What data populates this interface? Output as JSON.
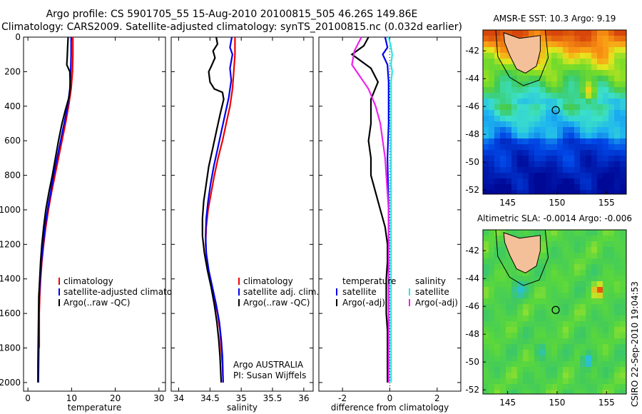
{
  "header": {
    "line1": "Argo profile: CS 5901705_55 15-Aug-2010 20100815_505 46.26S 149.86E",
    "line2": "Climatology: CARS2009. Satellite-adjusted climatology: synTS_20100815.nc (0.032d earlier)"
  },
  "side_text": "CSIRO 22-Sep-2010 19:04:53",
  "colors": {
    "argo": "#000000",
    "climatology": "#ee0000",
    "satellite": "#0000ee",
    "sal_satellite": "#22e8e8",
    "sal_argo": "#ee22ee",
    "land": "#f4c09a"
  },
  "chart_data": [
    {
      "type": "line",
      "xlabel": "temperature",
      "ylabel": "",
      "xlim": [
        -1,
        31.5
      ],
      "ylim": [
        2050,
        0
      ],
      "y_reversed": true,
      "xticks": [
        0,
        10,
        20,
        30
      ],
      "yticks": [
        0,
        200,
        400,
        600,
        800,
        1000,
        1200,
        1400,
        1600,
        1800,
        2000
      ],
      "legend": [
        "climatology",
        "satellite-adjusted climatology",
        "Argo(..raw -QC)"
      ],
      "series": [
        {
          "name": "climatology",
          "color": "#ee0000",
          "points": [
            [
              10.3,
              0
            ],
            [
              10.3,
              100
            ],
            [
              10.2,
              200
            ],
            [
              9.9,
              300
            ],
            [
              9.3,
              400
            ],
            [
              8.6,
              500
            ],
            [
              7.8,
              600
            ],
            [
              7.0,
              700
            ],
            [
              6.2,
              800
            ],
            [
              5.4,
              900
            ],
            [
              4.7,
              1000
            ],
            [
              4.1,
              1100
            ],
            [
              3.6,
              1200
            ],
            [
              3.2,
              1300
            ],
            [
              2.9,
              1400
            ],
            [
              2.7,
              1500
            ],
            [
              2.6,
              1600
            ],
            [
              2.6,
              1700
            ],
            [
              2.6,
              1800
            ]
          ]
        },
        {
          "name": "satellite-adjusted climatology",
          "color": "#0000ee",
          "points": [
            [
              9.9,
              0
            ],
            [
              9.9,
              100
            ],
            [
              9.8,
              200
            ],
            [
              9.6,
              300
            ],
            [
              9.1,
              400
            ],
            [
              8.3,
              500
            ],
            [
              7.5,
              600
            ],
            [
              6.7,
              700
            ],
            [
              5.9,
              800
            ],
            [
              5.2,
              900
            ],
            [
              4.5,
              1000
            ],
            [
              3.9,
              1100
            ],
            [
              3.5,
              1200
            ],
            [
              3.1,
              1300
            ],
            [
              2.8,
              1400
            ],
            [
              2.6,
              1500
            ],
            [
              2.5,
              1600
            ],
            [
              2.5,
              1800
            ],
            [
              2.4,
              2000
            ]
          ]
        },
        {
          "name": "Argo(..raw -QC)",
          "color": "#000000",
          "points": [
            [
              9.2,
              0
            ],
            [
              9.1,
              60
            ],
            [
              9.0,
              120
            ],
            [
              8.9,
              160
            ],
            [
              9.6,
              200
            ],
            [
              9.7,
              280
            ],
            [
              9.5,
              340
            ],
            [
              8.6,
              420
            ],
            [
              7.8,
              500
            ],
            [
              7.0,
              600
            ],
            [
              6.3,
              700
            ],
            [
              5.6,
              800
            ],
            [
              4.8,
              900
            ],
            [
              4.1,
              1000
            ],
            [
              3.6,
              1100
            ],
            [
              3.2,
              1200
            ],
            [
              2.9,
              1300
            ],
            [
              2.7,
              1400
            ],
            [
              2.5,
              1500
            ],
            [
              2.4,
              1700
            ],
            [
              2.3,
              1900
            ],
            [
              2.3,
              2000
            ]
          ]
        }
      ]
    },
    {
      "type": "line",
      "xlabel": "salinity",
      "ylabel": "",
      "xlim": [
        33.88,
        36.15
      ],
      "ylim": [
        2050,
        0
      ],
      "y_reversed": true,
      "xticks": [
        34,
        34.5,
        35,
        35.5,
        36
      ],
      "xtick_labels": [
        "34",
        "34.5",
        "35",
        "35.5",
        "36"
      ],
      "legend": [
        "climatology",
        "satellite adj. clim.",
        "Argo(..raw -QC)"
      ],
      "annotation": [
        "Argo AUSTRALIA",
        "PI: Susan Wijffels"
      ],
      "series": [
        {
          "name": "climatology",
          "color": "#ee0000",
          "points": [
            [
              34.9,
              0
            ],
            [
              34.9,
              100
            ],
            [
              34.88,
              200
            ],
            [
              34.86,
              300
            ],
            [
              34.82,
              400
            ],
            [
              34.76,
              500
            ],
            [
              34.7,
              600
            ],
            [
              34.63,
              700
            ],
            [
              34.57,
              800
            ],
            [
              34.52,
              900
            ],
            [
              34.47,
              1000
            ],
            [
              34.44,
              1100
            ],
            [
              34.43,
              1200
            ],
            [
              34.45,
              1300
            ],
            [
              34.5,
              1400
            ],
            [
              34.56,
              1500
            ],
            [
              34.62,
              1600
            ],
            [
              34.66,
              1700
            ],
            [
              34.68,
              1800
            ],
            [
              34.7,
              1900
            ],
            [
              34.71,
              2000
            ]
          ]
        },
        {
          "name": "satellite adj. clim.",
          "color": "#0000ee",
          "points": [
            [
              34.85,
              0
            ],
            [
              34.82,
              60
            ],
            [
              34.86,
              100
            ],
            [
              34.82,
              180
            ],
            [
              34.84,
              250
            ],
            [
              34.8,
              350
            ],
            [
              34.74,
              450
            ],
            [
              34.68,
              550
            ],
            [
              34.62,
              650
            ],
            [
              34.56,
              750
            ],
            [
              34.51,
              850
            ],
            [
              34.47,
              950
            ],
            [
              34.44,
              1050
            ],
            [
              34.43,
              1150
            ],
            [
              34.44,
              1250
            ],
            [
              34.48,
              1350
            ],
            [
              34.54,
              1450
            ],
            [
              34.6,
              1550
            ],
            [
              34.65,
              1650
            ],
            [
              34.68,
              1750
            ],
            [
              34.7,
              1850
            ],
            [
              34.71,
              2000
            ]
          ]
        },
        {
          "name": "Argo(..raw -QC)",
          "color": "#000000",
          "points": [
            [
              34.6,
              0
            ],
            [
              34.62,
              40
            ],
            [
              34.55,
              80
            ],
            [
              34.58,
              120
            ],
            [
              34.52,
              170
            ],
            [
              34.48,
              200
            ],
            [
              34.5,
              260
            ],
            [
              34.57,
              300
            ],
            [
              34.7,
              320
            ],
            [
              34.72,
              360
            ],
            [
              34.66,
              450
            ],
            [
              34.6,
              550
            ],
            [
              34.54,
              650
            ],
            [
              34.48,
              750
            ],
            [
              34.44,
              850
            ],
            [
              34.4,
              950
            ],
            [
              34.38,
              1050
            ],
            [
              34.38,
              1150
            ],
            [
              34.41,
              1250
            ],
            [
              34.46,
              1350
            ],
            [
              34.52,
              1450
            ],
            [
              34.57,
              1550
            ],
            [
              34.61,
              1650
            ],
            [
              34.64,
              1750
            ],
            [
              34.66,
              1850
            ],
            [
              34.68,
              2000
            ]
          ]
        }
      ]
    },
    {
      "type": "line",
      "xlabel": "difference from climatology",
      "ylabel": "",
      "xlim": [
        -3,
        3
      ],
      "ylim": [
        2050,
        0
      ],
      "y_reversed": true,
      "xticks": [
        -2,
        0,
        2
      ],
      "xtick_labels": [
        "-2",
        "0",
        "2"
      ],
      "legend_groups": [
        {
          "title": "temperature",
          "items": [
            "satellite",
            "Argo(-adj)"
          ]
        },
        {
          "title": "salinity",
          "items": [
            "satellite",
            "Argo(-adj)"
          ]
        }
      ],
      "series": [
        {
          "name": "temperature satellite",
          "color": "#0000ee",
          "points": [
            [
              -0.2,
              0
            ],
            [
              -0.1,
              60
            ],
            [
              -0.3,
              100
            ],
            [
              -0.1,
              160
            ],
            [
              -0.05,
              260
            ],
            [
              -0.05,
              500
            ],
            [
              -0.1,
              700
            ],
            [
              -0.05,
              1000
            ],
            [
              -0.05,
              1200
            ],
            [
              -0.05,
              1500
            ],
            [
              -0.05,
              2000
            ]
          ]
        },
        {
          "name": "temperature Argo(-adj)",
          "color": "#000000",
          "points": [
            [
              -0.9,
              0
            ],
            [
              -1.1,
              50
            ],
            [
              -1.6,
              100
            ],
            [
              -0.8,
              180
            ],
            [
              -0.5,
              260
            ],
            [
              -0.8,
              360
            ],
            [
              -0.8,
              500
            ],
            [
              -0.9,
              600
            ],
            [
              -0.8,
              700
            ],
            [
              -0.8,
              800
            ],
            [
              -0.6,
              900
            ],
            [
              -0.4,
              1000
            ],
            [
              -0.2,
              1100
            ],
            [
              -0.1,
              1200
            ],
            [
              -0.1,
              1300
            ],
            [
              -0.15,
              1400
            ],
            [
              -0.15,
              1500
            ],
            [
              -0.15,
              1600
            ],
            [
              -0.1,
              1700
            ],
            [
              -0.1,
              1800
            ],
            [
              -0.1,
              2000
            ]
          ]
        },
        {
          "name": "salinity satellite",
          "color": "#22e8e8",
          "points": [
            [
              -0.05,
              0
            ],
            [
              0.05,
              60
            ],
            [
              0.1,
              100
            ],
            [
              0.05,
              160
            ],
            [
              0.1,
              200
            ],
            [
              0.05,
              260
            ],
            [
              0.05,
              500
            ],
            [
              0.05,
              1000
            ],
            [
              0.05,
              2000
            ]
          ]
        },
        {
          "name": "salinity Argo(-adj)",
          "color": "#ee22ee",
          "points": [
            [
              -1.2,
              0
            ],
            [
              -1.5,
              80
            ],
            [
              -1.6,
              160
            ],
            [
              -1.3,
              220
            ],
            [
              -0.9,
              300
            ],
            [
              -0.6,
              400
            ],
            [
              -0.4,
              500
            ],
            [
              -0.3,
              600
            ],
            [
              -0.2,
              700
            ],
            [
              -0.15,
              800
            ],
            [
              -0.1,
              900
            ],
            [
              -0.05,
              1000
            ],
            [
              -0.05,
              1500
            ],
            [
              -0.05,
              2000
            ]
          ]
        }
      ]
    },
    {
      "type": "heatmap",
      "title": "AMSR-E SST: 10.3 Argo: 9.19",
      "xlim": [
        142.5,
        157
      ],
      "ylim": [
        -52.3,
        -40.5
      ],
      "xticks": [
        145,
        150,
        155
      ],
      "yticks": [
        -42,
        -44,
        -46,
        -48,
        -50,
        -52
      ],
      "argo_position": [
        149.86,
        -46.26
      ]
    },
    {
      "type": "heatmap",
      "title": "Altimetric SLA: -0.0014 Argo: -0.006",
      "xlim": [
        142.5,
        157
      ],
      "ylim": [
        -52.3,
        -40.5
      ],
      "xticks": [
        145,
        150,
        155
      ],
      "yticks": [
        -42,
        -44,
        -46,
        -48,
        -50,
        -52
      ],
      "argo_position": [
        149.86,
        -46.26
      ]
    }
  ]
}
